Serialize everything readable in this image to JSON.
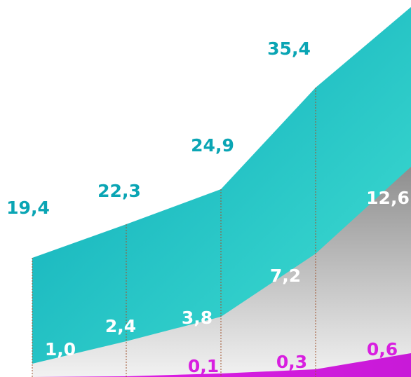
{
  "chart_data": {
    "type": "area",
    "x_count": 5,
    "ylim": [
      0,
      40
    ],
    "grid": false,
    "legend": "none",
    "series": [
      {
        "key": "teal",
        "values": [
          19.4,
          22.3,
          24.9,
          35.4,
          47.0
        ],
        "labels": [
          "19,4",
          "22,3",
          "24,9",
          "35,4",
          ""
        ],
        "label_color": "#0aa5b4",
        "fill_top": "#0aa8b8",
        "fill_bottom": "#43e0d3"
      },
      {
        "key": "gray",
        "values": [
          1.0,
          2.4,
          3.8,
          7.2,
          12.6
        ],
        "labels": [
          "1,0",
          "2,4",
          "3,8",
          "7,2",
          "12,6"
        ],
        "label_color": "#ffffff",
        "fill_top": "#8e8e8e",
        "fill_bottom": "#f2f2f2"
      },
      {
        "key": "magenta",
        "values": [
          0.0,
          0.02,
          0.1,
          0.3,
          0.6
        ],
        "labels": [
          "",
          "",
          "0,1",
          "0,3",
          "0,6"
        ],
        "label_color": "#d81fe0",
        "fill_top": "#e21ee6",
        "fill_bottom": "#c81ad8"
      }
    ],
    "divider_color": "#a0522d"
  }
}
